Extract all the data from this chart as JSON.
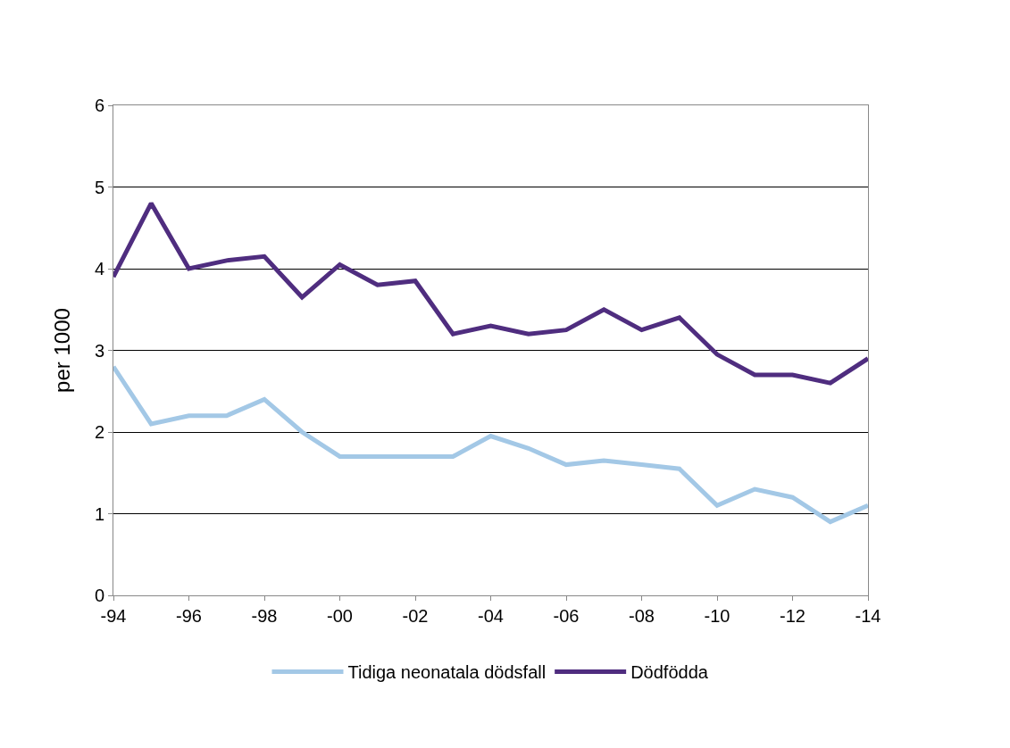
{
  "chart_data": {
    "type": "line",
    "ylabel": "per 1000",
    "categories": [
      "-94",
      null,
      "-96",
      null,
      "-98",
      null,
      "-00",
      null,
      "-02",
      null,
      "-04",
      null,
      "-06",
      null,
      "-08",
      null,
      "-10",
      null,
      "-12",
      null,
      "-14"
    ],
    "series": [
      {
        "name": "Tidiga neonatala dödsfall",
        "color": "#a3c8e6",
        "values": [
          2.8,
          2.1,
          2.2,
          2.2,
          2.4,
          2.0,
          1.7,
          1.7,
          1.7,
          1.7,
          1.95,
          1.8,
          1.6,
          1.65,
          1.6,
          1.55,
          1.1,
          1.3,
          1.2,
          0.9,
          1.1
        ]
      },
      {
        "name": "Dödfödda",
        "color": "#4f2d7f",
        "values": [
          3.9,
          4.8,
          4.0,
          4.1,
          4.15,
          3.65,
          4.05,
          3.8,
          3.85,
          3.2,
          3.3,
          3.2,
          3.25,
          3.5,
          3.25,
          3.4,
          2.95,
          2.7,
          2.7,
          2.6,
          2.9
        ]
      }
    ],
    "ylim": [
      0,
      6
    ],
    "yticks": [
      0,
      1,
      2,
      3,
      4,
      5,
      6
    ],
    "grid": "y",
    "legend": "bottom",
    "marker": "none",
    "line_style": "solid"
  }
}
